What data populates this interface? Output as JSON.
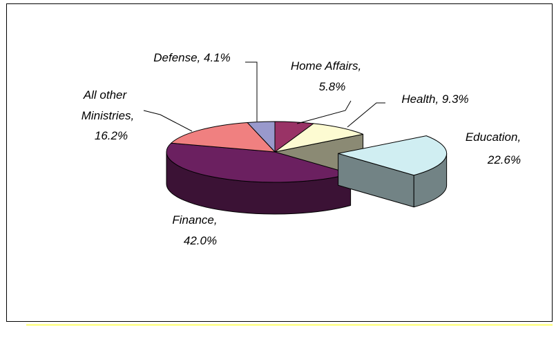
{
  "chart_data": {
    "type": "pie3d",
    "labels": [
      [
        "Defense, 4.1%"
      ],
      [
        "Home Affairs,",
        "5.8%"
      ],
      [
        "Health, 9.3%"
      ],
      [
        "Education,",
        "22.6%"
      ],
      [
        "Finance,",
        "42.0%"
      ],
      [
        "All other",
        "Ministries,",
        "16.2%"
      ]
    ],
    "values": [
      4.1,
      5.8,
      9.3,
      22.6,
      42.0,
      16.2
    ],
    "colors": [
      "#9999cc",
      "#993366",
      "#fdfbd2",
      "#d0eef2",
      "#6b2060",
      "#f08080"
    ],
    "explode": [
      false,
      false,
      false,
      true,
      false,
      false
    ]
  }
}
